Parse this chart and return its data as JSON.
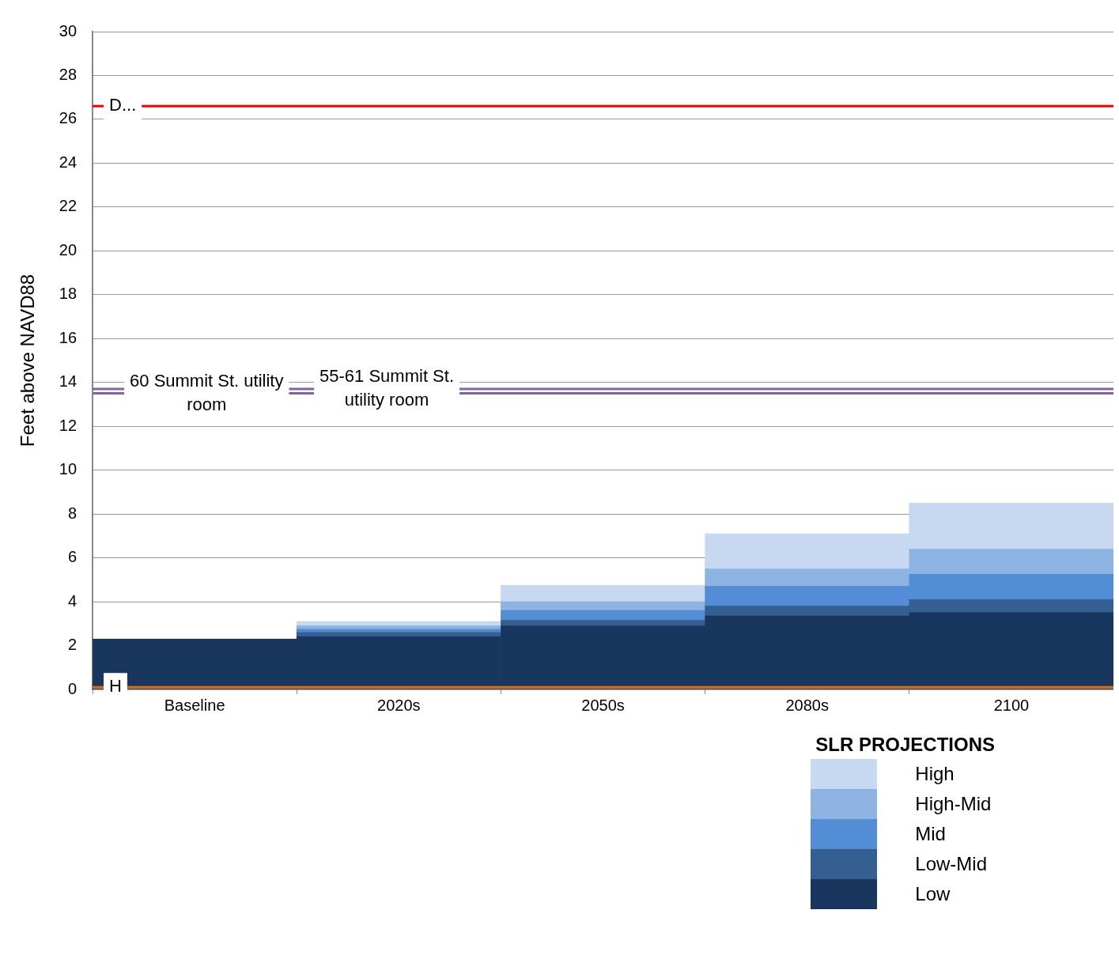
{
  "chart_data": {
    "type": "bar",
    "stacked": true,
    "ylabel": "Feet above NAVD88",
    "legend_title": "SLR PROJECTIONS",
    "legend": "bottom right",
    "grid": "y",
    "categories": [
      "Baseline",
      "2020s",
      "2050s",
      "2080s",
      "2100"
    ],
    "ylim": [
      0,
      30
    ],
    "yticks": [
      0,
      2,
      4,
      6,
      8,
      10,
      12,
      14,
      16,
      18,
      20,
      22,
      24,
      26,
      28,
      30
    ],
    "series": [
      {
        "name": "Low",
        "color": "#19375e",
        "values": [
          2.3,
          2.4,
          2.9,
          3.35,
          3.5
        ]
      },
      {
        "name": "Low-Mid",
        "color": "#365f91",
        "values": [
          0,
          0.2,
          0.25,
          0.45,
          0.6
        ]
      },
      {
        "name": "Mid",
        "color": "#538dd5",
        "values": [
          0,
          0.15,
          0.45,
          0.9,
          1.15
        ]
      },
      {
        "name": "High-Mid",
        "color": "#8db3e2",
        "values": [
          0,
          0.15,
          0.4,
          0.8,
          1.15
        ]
      },
      {
        "name": "High",
        "color": "#c6d9f1",
        "values": [
          0,
          0.2,
          0.75,
          1.6,
          2.1
        ]
      }
    ],
    "ref_lines": [
      {
        "axis": "y",
        "value": 26.6,
        "label": "D...",
        "color": "#ff0000",
        "line_style": "solid"
      },
      {
        "axis": "y",
        "value": 13.5,
        "label": "60 Summit St. utility room",
        "color": "#8064a2",
        "line_style": "solid"
      },
      {
        "axis": "y",
        "value": 13.7,
        "label": "55-61 Summit St. utility room",
        "color": "#8064a2",
        "line_style": "solid"
      },
      {
        "axis": "y",
        "value": 0.1,
        "label": "H",
        "color": "#e46c0a",
        "line_style": "solid"
      }
    ]
  }
}
